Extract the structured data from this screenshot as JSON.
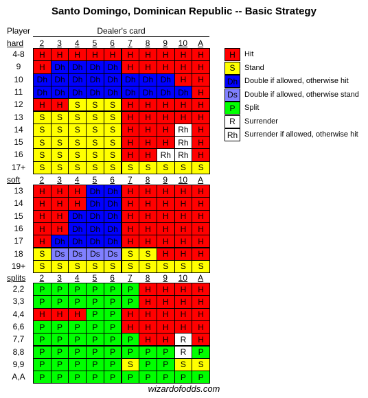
{
  "title": "Santo Domingo, Dominican Republic -- Basic Strategy",
  "player_label": "Player",
  "dealer_label": "Dealer's card",
  "sections": [
    {
      "name": "hard",
      "headers": [
        "2",
        "3",
        "4",
        "5",
        "6",
        "7",
        "8",
        "9",
        "10",
        "A"
      ],
      "rows": [
        {
          "label": "4-8",
          "cells": [
            "H",
            "H",
            "H",
            "H",
            "H",
            "H",
            "H",
            "H",
            "H",
            "H"
          ]
        },
        {
          "label": "9",
          "cells": [
            "H",
            "Dh",
            "Dh",
            "Dh",
            "Dh",
            "H",
            "H",
            "H",
            "H",
            "H"
          ]
        },
        {
          "label": "10",
          "cells": [
            "Dh",
            "Dh",
            "Dh",
            "Dh",
            "Dh",
            "Dh",
            "Dh",
            "Dh",
            "H",
            "H"
          ]
        },
        {
          "label": "11",
          "cells": [
            "Dh",
            "Dh",
            "Dh",
            "Dh",
            "Dh",
            "Dh",
            "Dh",
            "Dh",
            "Dh",
            "H"
          ]
        },
        {
          "label": "12",
          "cells": [
            "H",
            "H",
            "S",
            "S",
            "S",
            "H",
            "H",
            "H",
            "H",
            "H"
          ]
        },
        {
          "label": "13",
          "cells": [
            "S",
            "S",
            "S",
            "S",
            "S",
            "H",
            "H",
            "H",
            "H",
            "H"
          ]
        },
        {
          "label": "14",
          "cells": [
            "S",
            "S",
            "S",
            "S",
            "S",
            "H",
            "H",
            "H",
            "Rh",
            "H"
          ]
        },
        {
          "label": "15",
          "cells": [
            "S",
            "S",
            "S",
            "S",
            "S",
            "H",
            "H",
            "H",
            "Rh",
            "H"
          ]
        },
        {
          "label": "16",
          "cells": [
            "S",
            "S",
            "S",
            "S",
            "S",
            "H",
            "H",
            "Rh",
            "Rh",
            "H"
          ]
        },
        {
          "label": "17+",
          "cells": [
            "S",
            "S",
            "S",
            "S",
            "S",
            "S",
            "S",
            "S",
            "S",
            "S"
          ]
        }
      ]
    },
    {
      "name": "soft",
      "headers": [
        "2",
        "3",
        "4",
        "5",
        "6",
        "7",
        "8",
        "9",
        "10",
        "A"
      ],
      "rows": [
        {
          "label": "13",
          "cells": [
            "H",
            "H",
            "H",
            "Dh",
            "Dh",
            "H",
            "H",
            "H",
            "H",
            "H"
          ]
        },
        {
          "label": "14",
          "cells": [
            "H",
            "H",
            "H",
            "Dh",
            "Dh",
            "H",
            "H",
            "H",
            "H",
            "H"
          ]
        },
        {
          "label": "15",
          "cells": [
            "H",
            "H",
            "Dh",
            "Dh",
            "Dh",
            "H",
            "H",
            "H",
            "H",
            "H"
          ]
        },
        {
          "label": "16",
          "cells": [
            "H",
            "H",
            "Dh",
            "Dh",
            "Dh",
            "H",
            "H",
            "H",
            "H",
            "H"
          ]
        },
        {
          "label": "17",
          "cells": [
            "H",
            "Dh",
            "Dh",
            "Dh",
            "Dh",
            "H",
            "H",
            "H",
            "H",
            "H"
          ]
        },
        {
          "label": "18",
          "cells": [
            "S",
            "Ds",
            "Ds",
            "Ds",
            "Ds",
            "S",
            "S",
            "H",
            "H",
            "H"
          ]
        },
        {
          "label": "19+",
          "cells": [
            "S",
            "S",
            "S",
            "S",
            "S",
            "S",
            "S",
            "S",
            "S",
            "S"
          ]
        }
      ]
    },
    {
      "name": "splits",
      "headers": [
        "2",
        "3",
        "4",
        "5",
        "6",
        "7",
        "8",
        "9",
        "10",
        "A"
      ],
      "rows": [
        {
          "label": "2,2",
          "cells": [
            "P",
            "P",
            "P",
            "P",
            "P",
            "P",
            "H",
            "H",
            "H",
            "H"
          ]
        },
        {
          "label": "3,3",
          "cells": [
            "P",
            "P",
            "P",
            "P",
            "P",
            "P",
            "H",
            "H",
            "H",
            "H"
          ]
        },
        {
          "label": "4,4",
          "cells": [
            "H",
            "H",
            "H",
            "P",
            "P",
            "H",
            "H",
            "H",
            "H",
            "H"
          ]
        },
        {
          "label": "6,6",
          "cells": [
            "P",
            "P",
            "P",
            "P",
            "P",
            "H",
            "H",
            "H",
            "H",
            "H"
          ]
        },
        {
          "label": "7,7",
          "cells": [
            "P",
            "P",
            "P",
            "P",
            "P",
            "P",
            "H",
            "H",
            "R",
            "H"
          ]
        },
        {
          "label": "8,8",
          "cells": [
            "P",
            "P",
            "P",
            "P",
            "P",
            "P",
            "P",
            "P",
            "R",
            "P"
          ]
        },
        {
          "label": "9,9",
          "cells": [
            "P",
            "P",
            "P",
            "P",
            "P",
            "S",
            "P",
            "P",
            "S",
            "S"
          ]
        },
        {
          "label": "A,A",
          "cells": [
            "P",
            "P",
            "P",
            "P",
            "P",
            "P",
            "P",
            "P",
            "P",
            "P"
          ]
        }
      ]
    }
  ],
  "legend": [
    {
      "code": "H",
      "label": "Hit",
      "color": "#ff0000"
    },
    {
      "code": "S",
      "label": "Stand",
      "color": "#ffff00"
    },
    {
      "code": "Dh",
      "label": "Double if allowed, otherwise hit",
      "color": "#0000ff"
    },
    {
      "code": "Ds",
      "label": "Double if allowed, otherwise stand",
      "color": "#8080ff"
    },
    {
      "code": "P",
      "label": "Split",
      "color": "#00ff00"
    },
    {
      "code": "R",
      "label": "Surrender",
      "color": "#ffffff"
    },
    {
      "code": "Rh",
      "label": "Surrender if allowed, otherwise hit",
      "color": "#ffffff"
    }
  ],
  "footer": "wizardofodds.com"
}
